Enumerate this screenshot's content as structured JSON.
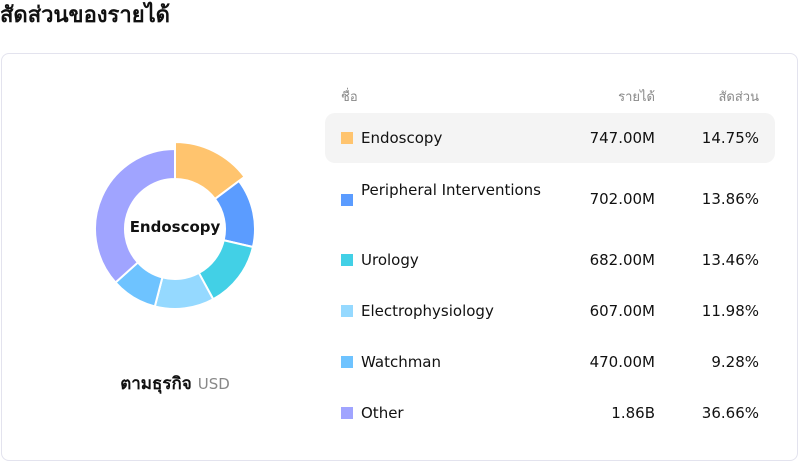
{
  "title": "สัดส่วนของรายได้",
  "donut": {
    "center_label": "Endoscopy",
    "highlighted": "Endoscopy"
  },
  "footer": {
    "group_label": "ตามธุรกิจ",
    "currency": "USD"
  },
  "table": {
    "headers": {
      "name": "ชื่อ",
      "revenue": "รายได้",
      "share": "สัดส่วน"
    },
    "rows": [
      {
        "name": "Endoscopy",
        "revenue": "747.00M",
        "share": "14.75%",
        "value": 14.75,
        "color": "#FFC46E"
      },
      {
        "name": "Peripheral Interventions",
        "revenue": "702.00M",
        "share": "13.86%",
        "value": 13.86,
        "color": "#5B9CFF"
      },
      {
        "name": "Urology",
        "revenue": "682.00M",
        "share": "13.46%",
        "value": 13.46,
        "color": "#42D0E6"
      },
      {
        "name": "Electrophysiology",
        "revenue": "607.00M",
        "share": "11.98%",
        "value": 11.98,
        "color": "#95D9FF"
      },
      {
        "name": "Watchman",
        "revenue": "470.00M",
        "share": "9.28%",
        "value": 9.28,
        "color": "#6EC3FF"
      },
      {
        "name": "Other",
        "revenue": "1.86B",
        "share": "36.66%",
        "value": 36.66,
        "color": "#A0A4FF"
      }
    ]
  }
}
